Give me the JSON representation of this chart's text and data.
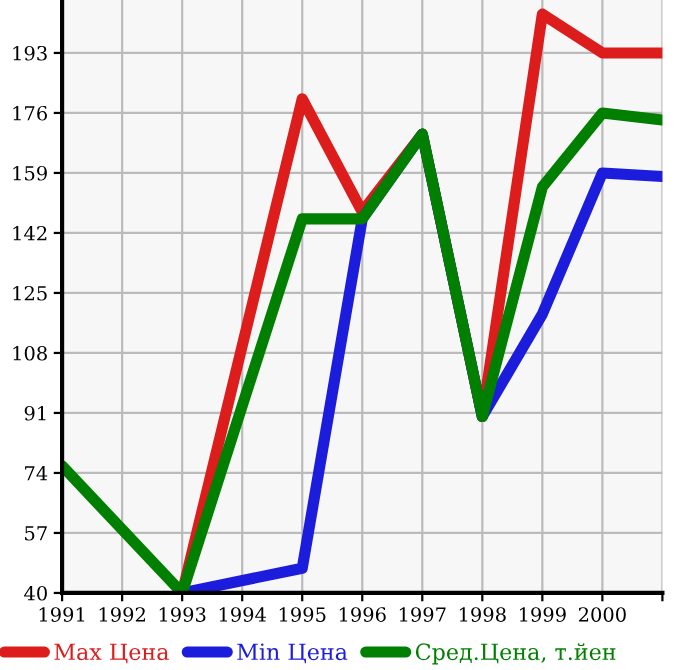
{
  "chart_data": {
    "type": "line",
    "xlim": [
      1991,
      2001
    ],
    "xticks": [
      1991,
      1992,
      1993,
      1994,
      1995,
      1996,
      1997,
      1998,
      1999,
      2000,
      {
        "value": 2001,
        "label": null
      }
    ],
    "ylim": [
      40,
      208
    ],
    "yticks": [
      40,
      57,
      74,
      91,
      108,
      125,
      142,
      159,
      176,
      193
    ],
    "grid": true,
    "legend": "bottom",
    "marker": "none",
    "line_style": "solid",
    "series": [
      {
        "name": "Max Цена",
        "color": "#dd1c1c",
        "x": [
          1993,
          1995,
          1996,
          1997,
          1998,
          1999,
          2000,
          2001
        ],
        "values": [
          40,
          180,
          148,
          170,
          90,
          204,
          193,
          193
        ]
      },
      {
        "name": "Min Цена",
        "color": "#1c1cdd",
        "x": [
          1993,
          1995,
          1996,
          1997,
          1998,
          1999,
          2000,
          2001
        ],
        "values": [
          40,
          47,
          146,
          170,
          90,
          119,
          159,
          158
        ]
      },
      {
        "name": "Сред.Цена, т.йен",
        "color": "#007f00",
        "x": [
          1991,
          1993,
          1995,
          1996,
          1997,
          1998,
          1999,
          2000,
          2001
        ],
        "values": [
          76,
          40,
          146,
          146,
          170,
          90,
          155,
          176,
          174
        ]
      }
    ]
  }
}
